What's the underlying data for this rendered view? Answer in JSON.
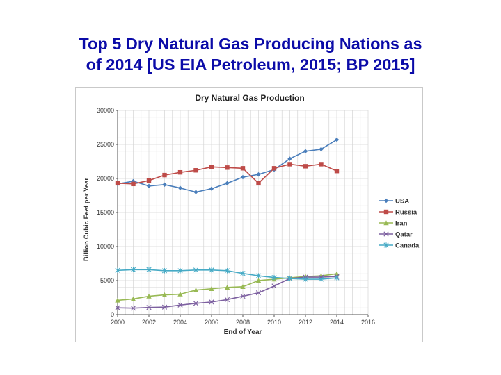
{
  "slide": {
    "title_line1": "Top 5 Dry Natural Gas Producing Nations as",
    "title_line2": "of 2014 [US EIA Petroleum, 2015; BP 2015]"
  },
  "chart_data": {
    "type": "line",
    "title": "Dry Natural Gas Production",
    "xlabel": "End of Year",
    "ylabel": "Billion Cubic Feet per Year",
    "xlim": [
      2000,
      2016
    ],
    "ylim": [
      0,
      30000
    ],
    "xticks": [
      2000,
      2002,
      2004,
      2006,
      2008,
      2010,
      2012,
      2014,
      2016
    ],
    "yticks": [
      0,
      5000,
      10000,
      15000,
      20000,
      25000,
      30000
    ],
    "grid": true,
    "legend_position": "right",
    "x": [
      2000,
      2001,
      2002,
      2003,
      2004,
      2005,
      2006,
      2007,
      2008,
      2009,
      2010,
      2011,
      2012,
      2013,
      2014
    ],
    "series": [
      {
        "name": "USA",
        "color": "#4a7ebb",
        "marker": "diamond",
        "values": [
          19200,
          19600,
          18900,
          19100,
          18600,
          18000,
          18500,
          19300,
          20200,
          20600,
          21300,
          22900,
          24000,
          24300,
          25700
        ]
      },
      {
        "name": "Russia",
        "color": "#be4b48",
        "marker": "square",
        "values": [
          19300,
          19200,
          19700,
          20500,
          20900,
          21200,
          21700,
          21600,
          21500,
          19300,
          21500,
          22100,
          21800,
          22100,
          21100
        ]
      },
      {
        "name": "Iran",
        "color": "#98b954",
        "marker": "triangle",
        "values": [
          2100,
          2300,
          2700,
          2900,
          3000,
          3600,
          3800,
          4000,
          4100,
          5000,
          5200,
          5400,
          5600,
          5700,
          6000
        ]
      },
      {
        "name": "Qatar",
        "color": "#7d60a0",
        "marker": "x",
        "values": [
          1000,
          950,
          1050,
          1100,
          1400,
          1650,
          1850,
          2200,
          2700,
          3200,
          4200,
          5300,
          5500,
          5500,
          5600
        ]
      },
      {
        "name": "Canada",
        "color": "#46aac5",
        "marker": "asterisk",
        "values": [
          6500,
          6600,
          6600,
          6450,
          6450,
          6550,
          6550,
          6450,
          6050,
          5700,
          5450,
          5300,
          5200,
          5200,
          5400
        ]
      }
    ]
  }
}
